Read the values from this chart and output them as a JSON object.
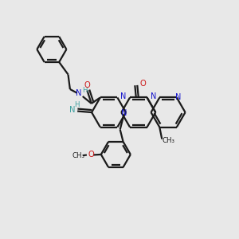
{
  "bg_color": "#e8e8e8",
  "bond_color": "#1a1a1a",
  "nitrogen_color": "#1414cc",
  "oxygen_color": "#cc1414",
  "imine_color": "#40a0a0",
  "line_width": 1.6,
  "figsize": [
    3.0,
    3.0
  ],
  "dpi": 100,
  "xlim": [
    0,
    10
  ],
  "ylim": [
    0,
    10
  ]
}
